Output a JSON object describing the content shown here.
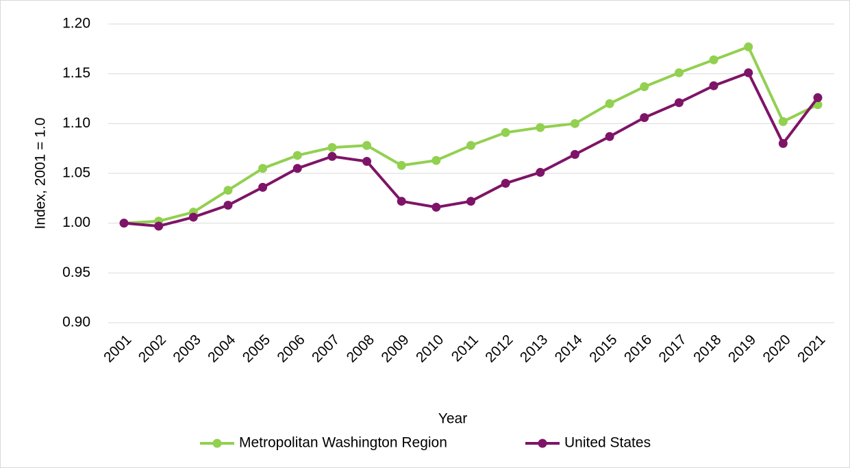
{
  "chart_data": {
    "type": "line",
    "x_label": "Year",
    "y_label": "Index, 2001 = 1.0",
    "categories": [
      "2001",
      "2002",
      "2003",
      "2004",
      "2005",
      "2006",
      "2007",
      "2008",
      "2009",
      "2010",
      "2011",
      "2012",
      "2013",
      "2014",
      "2015",
      "2016",
      "2017",
      "2018",
      "2019",
      "2020",
      "2021"
    ],
    "series": [
      {
        "name": "Metropolitan Washington Region",
        "color": "#92d050",
        "values": [
          1.0,
          1.002,
          1.011,
          1.033,
          1.055,
          1.068,
          1.076,
          1.078,
          1.058,
          1.063,
          1.078,
          1.091,
          1.096,
          1.1,
          1.12,
          1.137,
          1.151,
          1.164,
          1.177,
          1.102,
          1.119
        ]
      },
      {
        "name": "United States",
        "color": "#7e1467",
        "values": [
          1.0,
          0.997,
          1.006,
          1.018,
          1.036,
          1.055,
          1.067,
          1.062,
          1.022,
          1.016,
          1.022,
          1.04,
          1.051,
          1.069,
          1.087,
          1.106,
          1.121,
          1.138,
          1.151,
          1.08,
          1.126
        ]
      }
    ],
    "ylim": [
      0.9,
      1.2
    ],
    "yticks": [
      {
        "value": 0.9,
        "label": "0.90"
      },
      {
        "value": 0.95,
        "label": "0.95"
      },
      {
        "value": 1.0,
        "label": "1.00"
      },
      {
        "value": 1.05,
        "label": "1.05"
      },
      {
        "value": 1.1,
        "label": "1.10"
      },
      {
        "value": 1.15,
        "label": "1.15"
      },
      {
        "value": 1.2,
        "label": "1.20"
      }
    ],
    "grid": true,
    "legend": "bottom"
  }
}
